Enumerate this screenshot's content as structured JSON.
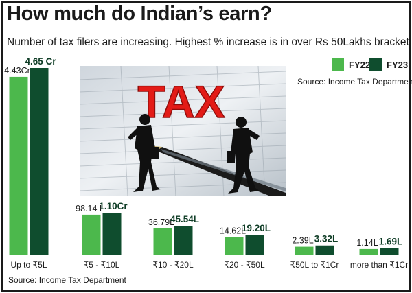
{
  "header": {
    "title": "How much do Indian’s earn?",
    "subtitle": "Number of tax filers are increasing. Highest % increase is in over Rs 50Lakhs bracket"
  },
  "source_top": "Source: Income Tax Department",
  "source_bottom": "Source: Income Tax Department",
  "photo": {
    "sign_text": "TAX",
    "description_icon": "tax-businessmen-photo"
  },
  "colors": {
    "fy22": "#4cb84c",
    "fy23": "#0f4d2e"
  },
  "chart_data": {
    "type": "bar",
    "title": "How much do Indian’s earn?",
    "subtitle": "Number of tax filers are increasing. Highest % increase is in over Rs 50Lakhs bracket",
    "categories": [
      "Up to ₹5L",
      "₹5 - ₹10L",
      "₹10 - ₹20L",
      "₹20 - ₹50L",
      "₹50L to ₹1Cr",
      "more than ₹1Cr"
    ],
    "series": [
      {
        "name": "FY22",
        "values": [
          44300000,
          9814000,
          3679000,
          1462000,
          239000,
          114000
        ],
        "labels": [
          "4.43Cr",
          "98.14 L",
          "36.79L",
          "14.62L",
          "2.39L",
          "1.14L"
        ]
      },
      {
        "name": "FY23",
        "values": [
          46500000,
          11000000,
          4554000,
          1920000,
          332000,
          169000
        ],
        "labels": [
          "4.65 Cr",
          "1.10Cr",
          "45.54L",
          "19.20L",
          "3.32L",
          "1.69L"
        ]
      }
    ],
    "legend_placement": "top-right",
    "grid": false
  }
}
